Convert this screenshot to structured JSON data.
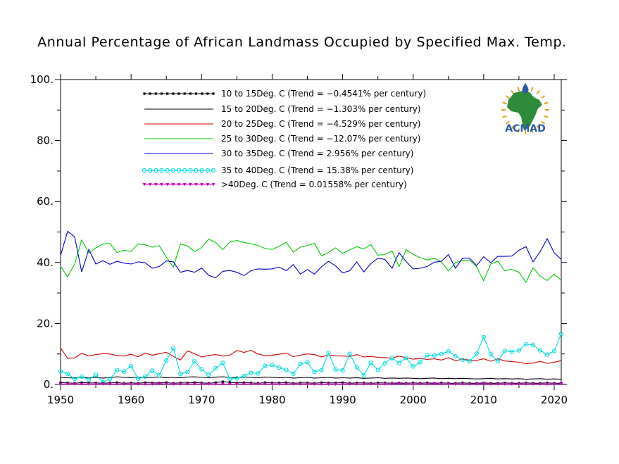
{
  "chart_data": {
    "type": "line",
    "title": "Annual Percentage of African Landmass Occupied by Specified Max. Temp.",
    "xlabel": "",
    "ylabel": "",
    "xlim": [
      1950,
      2021
    ],
    "ylim": [
      0,
      100
    ],
    "x_ticks": [
      1950,
      1960,
      1970,
      1980,
      1990,
      2000,
      2010,
      2020
    ],
    "x_tick_labels": [
      "1950",
      "1960",
      "1970",
      "1980",
      "1990",
      "2000",
      "2010",
      "2020"
    ],
    "y_ticks": [
      0,
      20,
      40,
      60,
      80,
      100
    ],
    "y_tick_labels": [
      "0.",
      "20.",
      "40.",
      "60.",
      "80.",
      "100."
    ],
    "legend_position": "top-center",
    "x": [
      1950,
      1951,
      1952,
      1953,
      1954,
      1955,
      1956,
      1957,
      1958,
      1959,
      1960,
      1961,
      1962,
      1963,
      1964,
      1965,
      1966,
      1967,
      1968,
      1969,
      1970,
      1971,
      1972,
      1973,
      1974,
      1975,
      1976,
      1977,
      1978,
      1979,
      1980,
      1981,
      1982,
      1983,
      1984,
      1985,
      1986,
      1987,
      1988,
      1989,
      1990,
      1991,
      1992,
      1993,
      1994,
      1995,
      1996,
      1997,
      1998,
      1999,
      2000,
      2001,
      2002,
      2003,
      2004,
      2005,
      2006,
      2007,
      2008,
      2009,
      2010,
      2011,
      2012,
      2013,
      2014,
      2015,
      2016,
      2017,
      2018,
      2019,
      2020,
      2021
    ],
    "series": [
      {
        "name": "10 to 15Deg. C (Trend = −0.4541% per century)",
        "color": "#000000",
        "marker": "square",
        "values": [
          0.6,
          0.5,
          0.4,
          0.6,
          0.5,
          0.5,
          0.4,
          0.5,
          0.6,
          0.4,
          0.5,
          0.4,
          0.6,
          0.5,
          0.5,
          0.6,
          0.4,
          0.5,
          0.5,
          0.6,
          0.5,
          0.4,
          0.6,
          0.9,
          0.7,
          0.5,
          0.6,
          0.5,
          0.4,
          0.6,
          0.5,
          0.5,
          0.6,
          0.4,
          0.5,
          0.5,
          0.4,
          0.6,
          0.5,
          0.5,
          0.6,
          0.4,
          0.5,
          0.5,
          0.4,
          0.5,
          0.5,
          0.4,
          0.5,
          0.4,
          0.5,
          0.4,
          0.5,
          0.4,
          0.5,
          0.4,
          0.4,
          0.5,
          0.4,
          0.4,
          0.5,
          0.4,
          0.4,
          0.5,
          0.4,
          0.4,
          0.5,
          0.4,
          0.4,
          0.5,
          0.4,
          0.4
        ]
      },
      {
        "name": "15 to 20Deg. C (Trend = −1.303% per century)",
        "color": "#000000",
        "marker": "none",
        "values": [
          2.3,
          2.2,
          2.1,
          2.4,
          2.2,
          2.3,
          2.1,
          2.2,
          2.5,
          2.3,
          2.2,
          2.4,
          2.2,
          2.3,
          2.4,
          2.2,
          2.3,
          2.2,
          2.4,
          2.5,
          2.3,
          2.2,
          2.4,
          2.5,
          2.3,
          2.2,
          2.4,
          2.3,
          2.2,
          2.4,
          2.3,
          2.2,
          2.3,
          2.1,
          2.2,
          2.3,
          2.1,
          2.2,
          2.3,
          2.1,
          2.2,
          2.1,
          2.2,
          2.0,
          2.1,
          2.2,
          2.0,
          2.1,
          2.0,
          2.1,
          2.0,
          1.9,
          2.0,
          2.1,
          1.9,
          2.0,
          1.9,
          2.0,
          1.9,
          1.8,
          1.9,
          2.0,
          1.8,
          1.9,
          1.8,
          1.9,
          1.7,
          1.8,
          1.9,
          1.7,
          1.8,
          1.7
        ]
      },
      {
        "name": "20 to 25Deg. C (Trend = −4.529% per century)",
        "color": "#cc0000",
        "marker": "none",
        "values": [
          12.0,
          8.6,
          8.7,
          10.2,
          9.3,
          9.8,
          10.1,
          10.0,
          9.5,
          9.3,
          9.9,
          9.1,
          10.3,
          9.6,
          10.1,
          10.5,
          9.2,
          8.0,
          11.0,
          10.1,
          9.0,
          9.5,
          9.8,
          9.3,
          9.6,
          11.1,
          10.5,
          11.2,
          10.0,
          9.4,
          9.6,
          9.9,
          10.3,
          9.1,
          9.6,
          10.0,
          9.8,
          9.0,
          9.7,
          9.4,
          9.3,
          9.2,
          9.8,
          9.0,
          9.2,
          8.9,
          8.8,
          8.6,
          9.3,
          8.7,
          8.3,
          8.5,
          8.2,
          8.4,
          8.0,
          8.8,
          7.8,
          8.3,
          8.0,
          7.9,
          8.4,
          7.6,
          8.4,
          7.7,
          7.5,
          7.3,
          6.8,
          7.0,
          7.6,
          6.9,
          7.3,
          7.8
        ]
      },
      {
        "name": "25 to 30Deg. C (Trend = −12.07% per century)",
        "color": "#00cc00",
        "marker": "none",
        "values": [
          38.8,
          35.3,
          39.5,
          47.4,
          43.1,
          44.8,
          46.0,
          46.3,
          43.3,
          44.0,
          43.6,
          46.1,
          45.8,
          45.0,
          45.5,
          41.7,
          38.5,
          46.1,
          45.4,
          43.6,
          44.9,
          47.7,
          46.6,
          44.2,
          46.7,
          47.2,
          46.6,
          46.1,
          45.6,
          44.6,
          44.3,
          45.3,
          46.6,
          43.4,
          45.0,
          45.6,
          46.3,
          42.2,
          43.3,
          44.8,
          43.0,
          44.1,
          45.2,
          44.4,
          45.9,
          42.4,
          42.6,
          43.8,
          38.6,
          44.2,
          42.7,
          41.6,
          40.8,
          41.4,
          40.2,
          37.2,
          40.0,
          40.6,
          40.8,
          38.6,
          34.0,
          39.5,
          40.4,
          37.3,
          37.8,
          36.8,
          33.5,
          38.3,
          35.5,
          34.1,
          36.2,
          34.2
        ]
      },
      {
        "name": "30 to 35Deg. C (Trend = 2.956% per century)",
        "color": "#0000cc",
        "marker": "none",
        "values": [
          42.3,
          50.2,
          48.4,
          36.9,
          44.3,
          39.5,
          40.6,
          39.4,
          40.4,
          39.8,
          39.5,
          40.2,
          39.9,
          38.1,
          38.7,
          40.5,
          40.2,
          36.8,
          37.4,
          36.8,
          38.2,
          35.8,
          35.0,
          37.1,
          37.4,
          36.8,
          35.7,
          37.3,
          37.9,
          37.8,
          37.9,
          38.5,
          37.3,
          39.3,
          36.2,
          37.7,
          36.2,
          38.6,
          40.4,
          38.9,
          36.6,
          37.3,
          40.2,
          36.9,
          39.6,
          41.4,
          41.0,
          38.1,
          43.2,
          40.3,
          37.9,
          38.1,
          38.7,
          40.1,
          40.4,
          42.6,
          38.1,
          41.4,
          41.4,
          39.0,
          41.9,
          39.9,
          42.0,
          42.0,
          42.1,
          44.0,
          45.2,
          40.2,
          43.5,
          47.8,
          43.2,
          41.0
        ]
      },
      {
        "name": "35 to 40Deg. C (Trend = 15.38% per century)",
        "color": "#00dddd",
        "marker": "circle",
        "values": [
          4.3,
          3.5,
          1.8,
          2.6,
          1.5,
          3.2,
          0.8,
          1.8,
          4.7,
          4.2,
          6.0,
          1.9,
          2.6,
          4.5,
          3.0,
          7.9,
          11.9,
          3.4,
          4.1,
          7.6,
          5.0,
          3.2,
          5.3,
          7.1,
          1.8,
          2.0,
          2.8,
          3.8,
          3.6,
          6.1,
          6.4,
          5.5,
          4.8,
          3.5,
          6.7,
          7.3,
          4.1,
          4.7,
          10.3,
          4.9,
          4.6,
          10.0,
          5.6,
          3.0,
          7.1,
          4.8,
          6.9,
          8.7,
          7.0,
          8.7,
          5.9,
          7.3,
          9.6,
          9.5,
          10.0,
          10.9,
          9.2,
          8.1,
          7.6,
          10.1,
          15.5,
          9.9,
          7.6,
          11.0,
          10.7,
          11.2,
          13.2,
          13.0,
          11.2,
          9.8,
          11.0,
          16.6
        ]
      },
      {
        "name": ">40Deg. C (Trend = 0.01558% per century)",
        "color": "#cc00cc",
        "marker": "triangle",
        "values": [
          0.1,
          0.1,
          0.1,
          0.1,
          0.1,
          0.1,
          0.1,
          0.1,
          0.1,
          0.1,
          0.1,
          0.1,
          0.1,
          0.1,
          0.2,
          0.1,
          0.1,
          0.1,
          0.1,
          0.1,
          0.1,
          0.1,
          0.1,
          0.1,
          0.1,
          0.1,
          0.1,
          0.1,
          0.1,
          0.1,
          0.1,
          0.1,
          0.1,
          0.1,
          0.1,
          0.1,
          0.1,
          0.1,
          0.1,
          0.1,
          0.1,
          0.1,
          0.1,
          0.1,
          0.1,
          0.1,
          0.1,
          0.1,
          0.2,
          0.1,
          0.1,
          0.1,
          0.1,
          0.2,
          0.1,
          0.1,
          0.1,
          0.1,
          0.1,
          0.1,
          0.2,
          0.1,
          0.1,
          0.1,
          0.1,
          0.1,
          0.1,
          0.1,
          0.1,
          0.1,
          0.1,
          0.2
        ]
      }
    ]
  },
  "logo": {
    "text": "ACMAD",
    "accent": "#e0a020",
    "text_color": "#2a5ca8",
    "map_color": "#2e8b3a"
  }
}
